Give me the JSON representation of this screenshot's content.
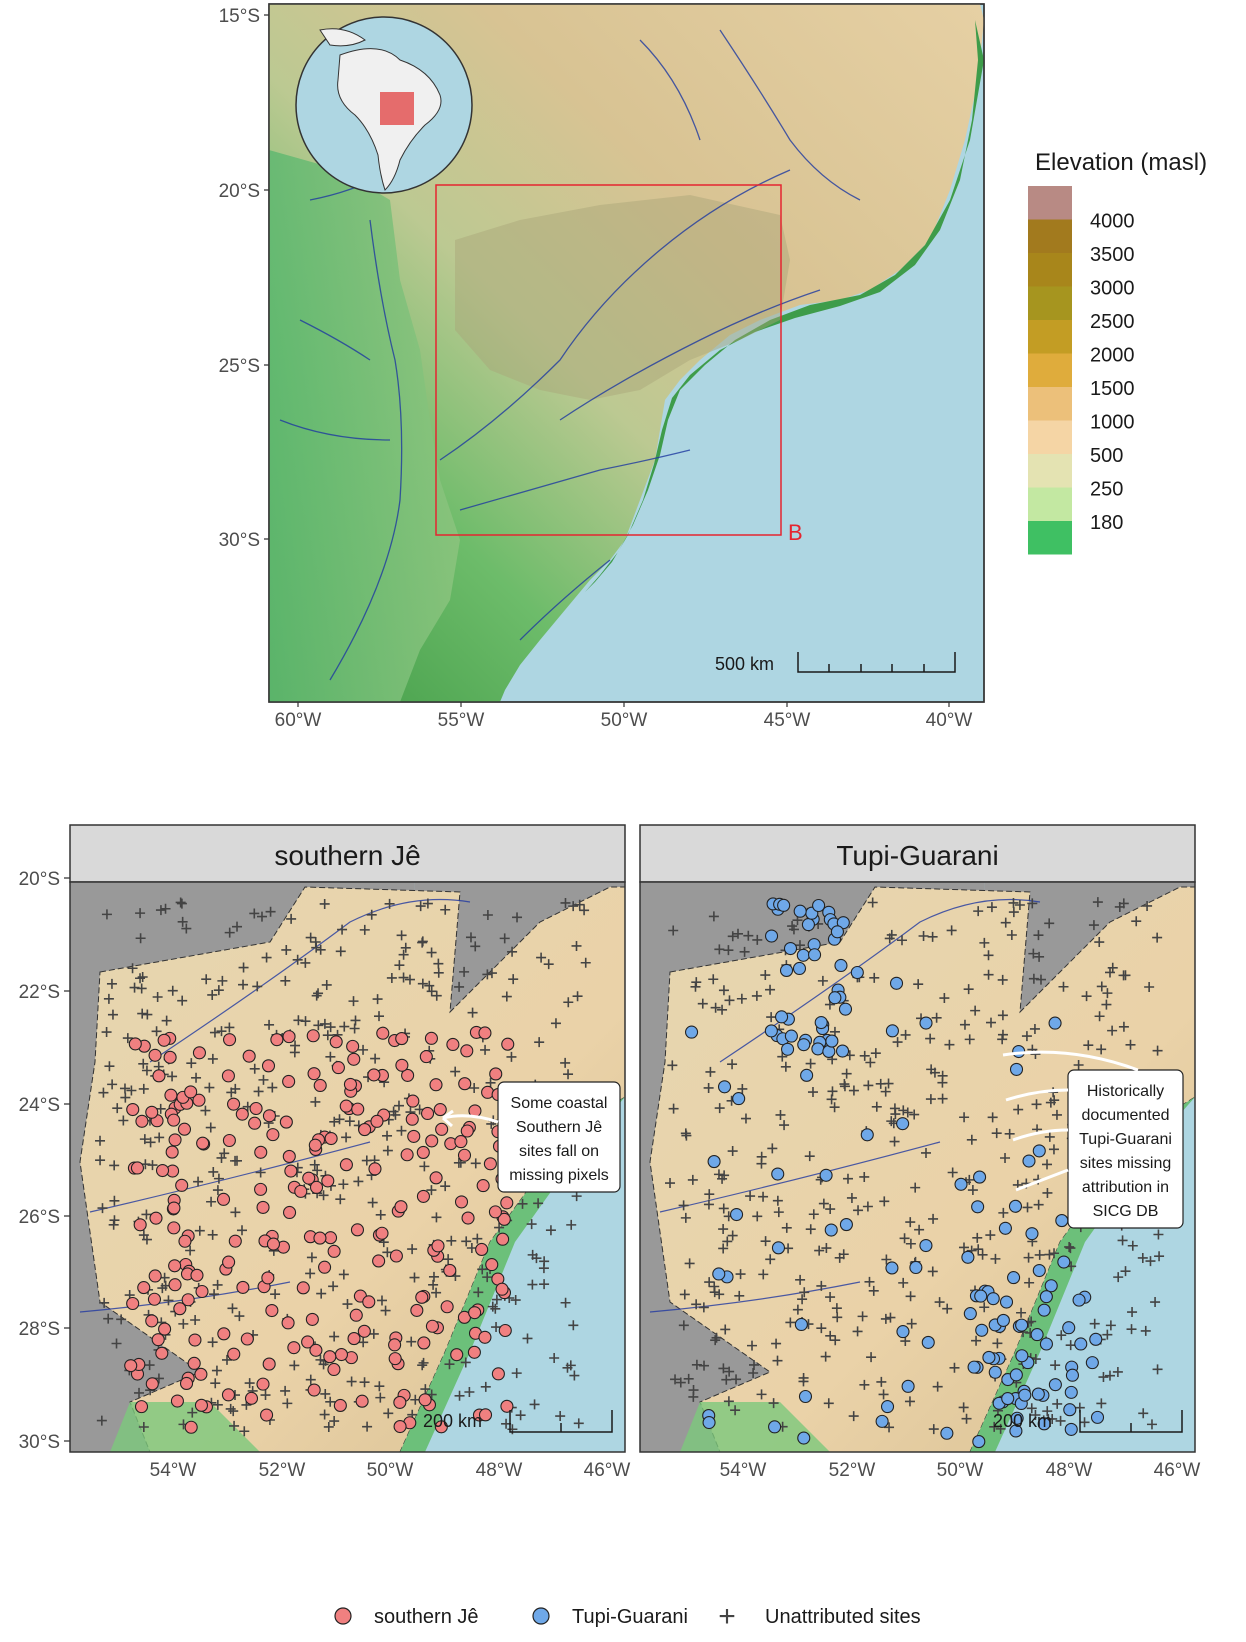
{
  "top_map": {
    "lat_ticks": [
      "15°S",
      "20°S",
      "25°S",
      "30°S"
    ],
    "lon_ticks": [
      "60°W",
      "55°W",
      "50°W",
      "45°W",
      "40°W"
    ],
    "box_label": "B",
    "scale_label": "500 km",
    "legend": {
      "title": "Elevation (masl)",
      "values": [
        "4000",
        "3500",
        "3000",
        "2500",
        "2000",
        "1500",
        "1000",
        "500",
        "250",
        "180"
      ],
      "colors": [
        "#b88a84",
        "#a27a1e",
        "#a8861b",
        "#a6951f",
        "#c39d24",
        "#dfac3c",
        "#ecc07a",
        "#f5d5a5",
        "#e4e3b2",
        "#c3e8a2",
        "#3fc063"
      ]
    }
  },
  "panels": [
    {
      "strip": "southern Jê",
      "scale_label": "200 km",
      "note": [
        "Some coastal",
        "Southern Jê",
        "sites fall on",
        "missing pixels"
      ]
    },
    {
      "strip": "Tupi-Guarani",
      "scale_label": "200 km",
      "note": [
        "Historically",
        "documented",
        "Tupi-Guarani",
        "sites missing",
        "attribution in",
        "SICG DB"
      ]
    }
  ],
  "bottom_lat_ticks": [
    "20°S",
    "22°S",
    "24°S",
    "26°S",
    "28°S",
    "30°S"
  ],
  "bottom_lon_ticks": [
    "54°W",
    "52°W",
    "50°W",
    "48°W",
    "46°W"
  ],
  "legend": {
    "items": [
      {
        "label": "southern Jê",
        "color": "#f08080"
      },
      {
        "label": "Tupi-Guarani",
        "color": "#6fa8e8"
      },
      {
        "label": "Unattributed sites",
        "symbol": "+"
      }
    ]
  },
  "colors": {
    "sea": "#aed6e2",
    "ocean_bg": "#a8d5e2",
    "missing": "#999999",
    "land_high": "#e8cfa8",
    "land_low": "#5fbf6e",
    "box": "#e52530"
  }
}
